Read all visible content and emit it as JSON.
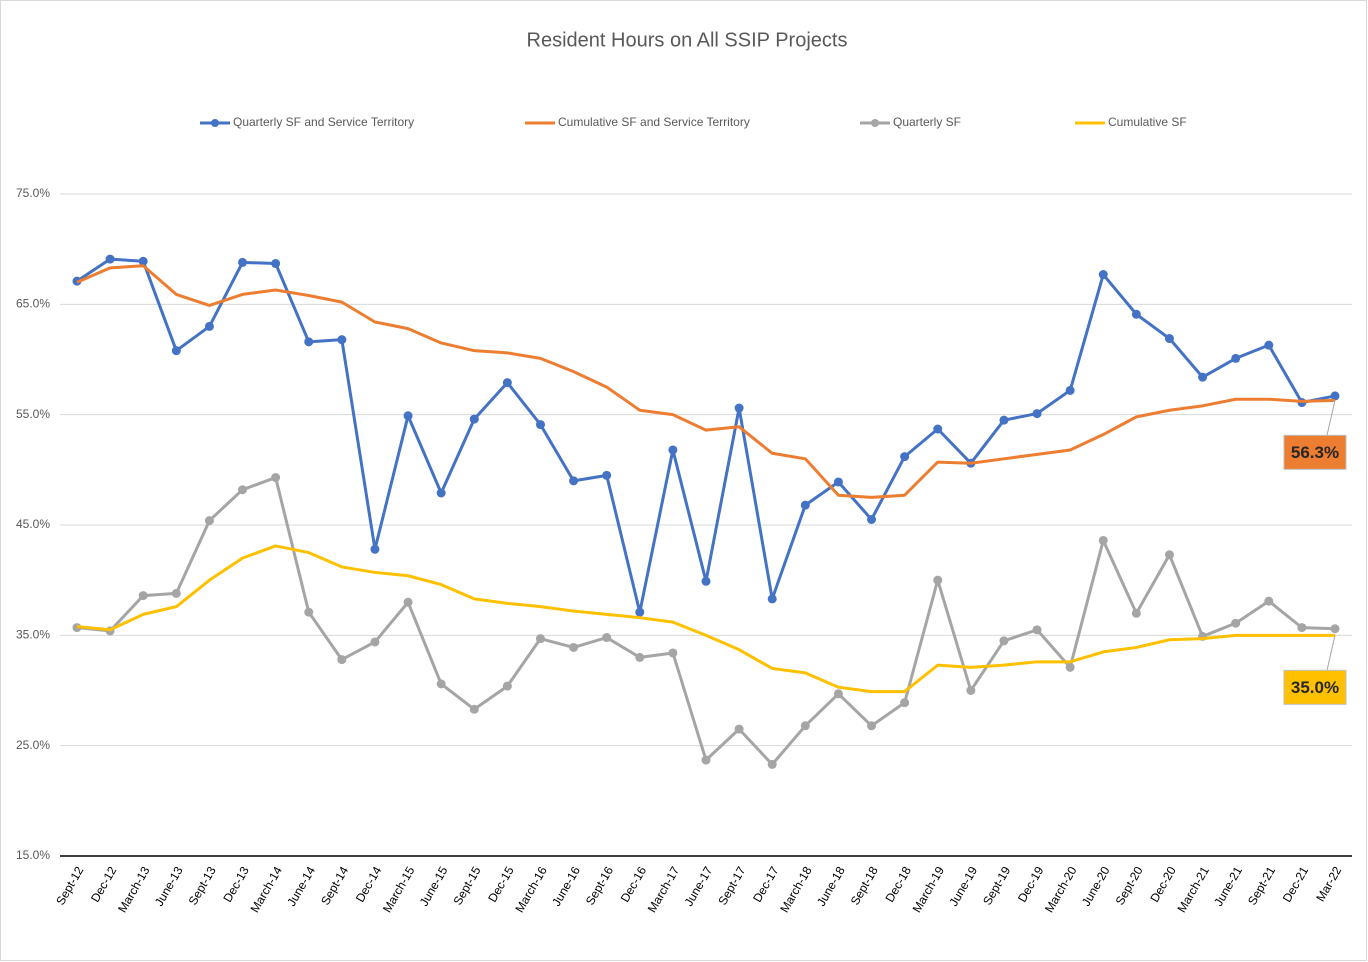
{
  "chart_data": {
    "type": "line",
    "title": "Resident Hours on All SSIP Projects",
    "categories": [
      "Sept-12",
      "Dec-12",
      "March-13",
      "June-13",
      "Sept-13",
      "Dec-13",
      "March-14",
      "June-14",
      "Sept-14",
      "Dec-14",
      "March-15",
      "June-15",
      "Sept-15",
      "Dec-15",
      "March-16",
      "June-16",
      "Sept-16",
      "Dec-16",
      "March-17",
      "June-17",
      "Sept-17",
      "Dec-17",
      "March-18",
      "June-18",
      "Sept-18",
      "Dec-18",
      "March-19",
      "June-19",
      "Sept-19",
      "Dec-19",
      "March-20",
      "June-20",
      "Sept-20",
      "Dec-20",
      "March-21",
      "June-21",
      "Sept-21",
      "Dec-21",
      "Mar-22"
    ],
    "series": [
      {
        "name": "Quarterly SF and Service Territory",
        "color": "#4472c4",
        "markers": true,
        "values": [
          67.1,
          69.1,
          68.9,
          60.8,
          63.0,
          68.8,
          68.7,
          61.6,
          61.8,
          42.8,
          54.9,
          47.9,
          54.6,
          57.9,
          54.1,
          49.0,
          49.5,
          37.1,
          51.8,
          39.9,
          55.6,
          38.3,
          46.8,
          48.9,
          45.5,
          51.2,
          53.7,
          50.6,
          54.5,
          55.1,
          57.2,
          67.7,
          64.1,
          61.9,
          58.4,
          60.1,
          61.3,
          56.1,
          56.7
        ]
      },
      {
        "name": "Cumulative SF and Service Territory",
        "color": "#ed7d31",
        "markers": false,
        "values": [
          67.0,
          68.3,
          68.5,
          65.9,
          64.9,
          65.9,
          66.3,
          65.8,
          65.2,
          63.4,
          62.8,
          61.5,
          60.8,
          60.6,
          60.1,
          58.9,
          57.5,
          55.4,
          55.0,
          53.6,
          53.9,
          51.5,
          51.0,
          47.7,
          47.5,
          47.7,
          50.7,
          50.6,
          51.0,
          51.4,
          51.8,
          53.2,
          54.8,
          55.4,
          55.8,
          56.4,
          56.4,
          56.2,
          56.3
        ],
        "value_labels": [
          null,
          null,
          null,
          null,
          null,
          null,
          null,
          null,
          null,
          null,
          null,
          null,
          null,
          null,
          null,
          null,
          null,
          null,
          null,
          null,
          null,
          null,
          null,
          null,
          null,
          null,
          null,
          null,
          null,
          null,
          null,
          null,
          null,
          null,
          null,
          null,
          null,
          null,
          "56.3%"
        ]
      },
      {
        "name": "Quarterly SF",
        "color": "#a5a5a5",
        "markers": true,
        "values": [
          35.7,
          35.4,
          38.6,
          38.8,
          45.4,
          48.2,
          49.3,
          37.1,
          32.8,
          34.4,
          38.0,
          30.6,
          28.3,
          30.4,
          34.7,
          33.9,
          34.8,
          33.0,
          33.4,
          23.7,
          26.5,
          23.3,
          26.8,
          29.7,
          26.8,
          28.9,
          40.0,
          30.0,
          34.5,
          35.5,
          32.1,
          43.6,
          37.0,
          42.3,
          34.9,
          36.1,
          38.1,
          35.7,
          35.6
        ]
      },
      {
        "name": "Cumulative SF",
        "color": "#ffc000",
        "markers": false,
        "values": [
          35.8,
          35.5,
          36.9,
          37.6,
          40.0,
          42.0,
          43.1,
          42.5,
          41.2,
          40.7,
          40.4,
          39.6,
          38.3,
          37.9,
          37.6,
          37.2,
          36.9,
          36.6,
          36.2,
          35.0,
          33.7,
          32.0,
          31.6,
          30.3,
          29.9,
          29.9,
          32.3,
          32.1,
          32.3,
          32.6,
          32.6,
          33.5,
          33.9,
          34.6,
          34.7,
          35.0,
          35.0,
          35.0,
          35.0
        ],
        "value_labels": [
          null,
          null,
          null,
          null,
          null,
          null,
          null,
          null,
          null,
          null,
          null,
          null,
          null,
          null,
          null,
          null,
          null,
          null,
          null,
          null,
          null,
          null,
          null,
          null,
          null,
          null,
          null,
          null,
          null,
          null,
          null,
          null,
          null,
          null,
          null,
          null,
          null,
          null,
          "35.0%"
        ]
      }
    ],
    "ylim": [
      15,
      75
    ],
    "yticks": [
      {
        "value": 15,
        "label": "15.0%"
      },
      {
        "value": 25,
        "label": "25.0%"
      },
      {
        "value": 35,
        "label": "35.0%"
      },
      {
        "value": 45,
        "label": "45.0%"
      },
      {
        "value": 55,
        "label": "55.0%"
      },
      {
        "value": 65,
        "label": "65.0%"
      },
      {
        "value": 75,
        "label": "75.0%"
      }
    ],
    "grid": true,
    "legend": "top"
  }
}
